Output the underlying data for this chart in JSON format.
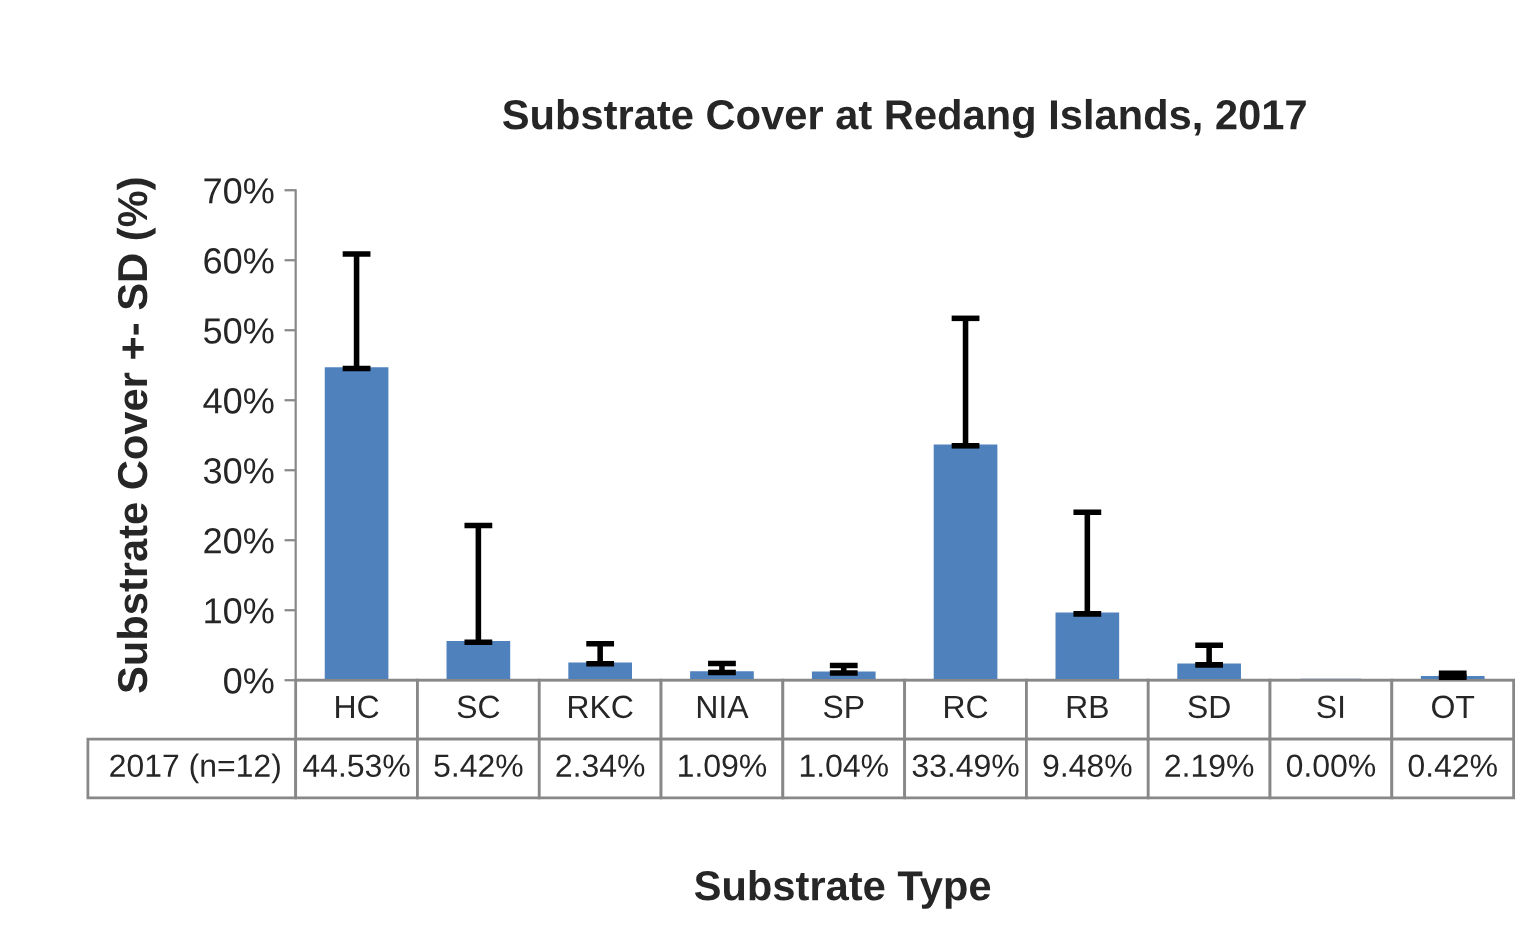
{
  "chart_data": {
    "type": "bar",
    "title": "Substrate Cover at Redang Islands, 2017",
    "xlabel": "Substrate Type",
    "ylabel": "Substrate Cover +- SD (%)",
    "categories": [
      "HC",
      "SC",
      "RKC",
      "NIA",
      "SP",
      "RC",
      "RB",
      "SD",
      "SI",
      "OT"
    ],
    "series": [
      {
        "name": "2017 (n=12)",
        "color": "#4f81bd",
        "values": [
          44.53,
          5.42,
          2.34,
          1.09,
          1.04,
          33.49,
          9.48,
          2.19,
          0.0,
          0.42
        ],
        "errors": [
          [
            44.53,
            60.9
          ],
          [
            5.42,
            22.1
          ],
          [
            2.34,
            5.2
          ],
          [
            1.09,
            2.4
          ],
          [
            1.04,
            2.1
          ],
          [
            33.49,
            51.7
          ],
          [
            9.48,
            24.0
          ],
          [
            2.19,
            5.0
          ],
          null,
          [
            0.42,
            1.0
          ]
        ],
        "value_labels": [
          "44.53%",
          "5.42%",
          "2.34%",
          "1.09%",
          "1.04%",
          "33.49%",
          "9.48%",
          "2.19%",
          "0.00%",
          "0.42%"
        ]
      }
    ],
    "ylim": [
      0,
      70
    ],
    "yticks": [
      {
        "value": 0,
        "label": "0%"
      },
      {
        "value": 10,
        "label": "10%"
      },
      {
        "value": 20,
        "label": "20%"
      },
      {
        "value": 30,
        "label": "30%"
      },
      {
        "value": 40,
        "label": "40%"
      },
      {
        "value": 50,
        "label": "50%"
      },
      {
        "value": 60,
        "label": "60%"
      },
      {
        "value": 70,
        "label": "70%"
      }
    ],
    "grid": false,
    "legend": "bottom"
  }
}
